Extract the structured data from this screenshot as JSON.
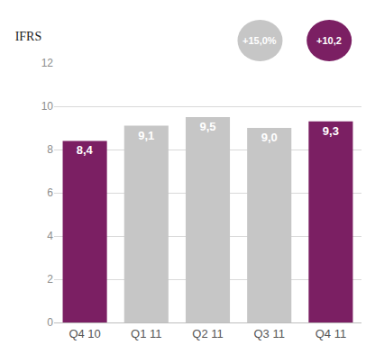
{
  "chart_data": {
    "type": "bar",
    "title": "IFRS",
    "categories": [
      "Q4 10",
      "Q1 11",
      "Q2 11",
      "Q3 11",
      "Q4 11"
    ],
    "values": [
      8.4,
      9.1,
      9.5,
      9.0,
      9.3
    ],
    "value_labels": [
      "8,4",
      "9,1",
      "9,5",
      "9,0",
      "9,3"
    ],
    "colors": [
      "#7b1f63",
      "#c6c6c6",
      "#c6c6c6",
      "#c6c6c6",
      "#7b1f63"
    ],
    "data_labels": true,
    "ylim": [
      0,
      12
    ],
    "yticks": [
      0,
      2,
      4,
      6,
      8,
      10,
      12
    ],
    "grid": true,
    "annotations": [
      {
        "text": "+15,0%",
        "color": "#c6c6c6"
      },
      {
        "text": "+10,2",
        "color": "#7b1f63"
      }
    ]
  }
}
